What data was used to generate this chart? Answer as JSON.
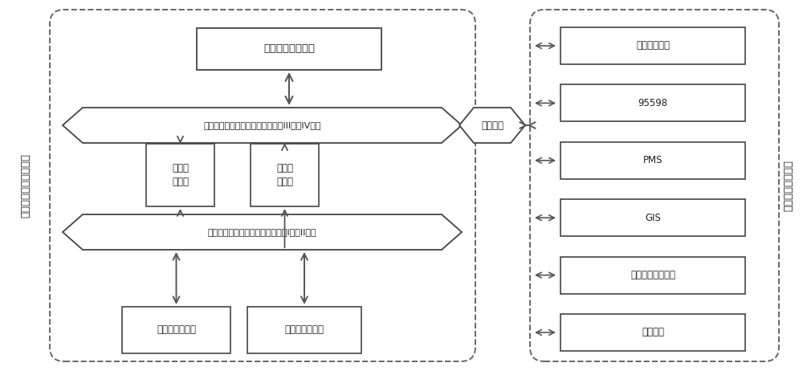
{
  "bg_color": "#ffffff",
  "text_color": "#222222",
  "left_label": "地区（市）级供电公司",
  "right_label": "省（直辖市）公司",
  "top_box_text": "配网抜修指挥平台",
  "bus1_text": "地（市）供电公司信息交换总线（III区和IV区）",
  "bus2_text": "地（市）供电公司信息交换总线（I区和II区）",
  "fwd_box_text": "正向物\n理隔离",
  "rev_box_text": "反向物\n理隔离",
  "bottom_box1_text": "配电自动化系统",
  "bottom_box2_text": "调度自动化系统",
  "gateway_text": "总线网关",
  "right_systems": [
    "营销管理系统",
    "95598",
    "PMS",
    "GIS",
    "用电信息采集系统",
    "其他系统"
  ]
}
